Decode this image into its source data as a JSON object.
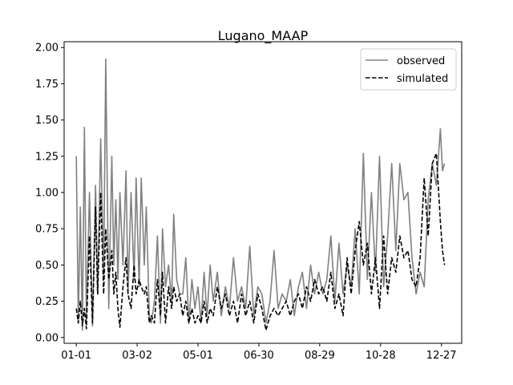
{
  "chart_data": {
    "type": "line",
    "title": "Lugano_MAAP",
    "xlabel": "",
    "ylabel": "",
    "x_ticks": [
      "01-01",
      "03-02",
      "05-01",
      "06-30",
      "08-29",
      "10-28",
      "12-27"
    ],
    "x_tick_days": [
      1,
      61,
      121,
      181,
      241,
      301,
      361
    ],
    "xlim": [
      -11,
      381
    ],
    "ylim": [
      -0.04,
      2.04
    ],
    "y_ticks": [
      "0.00",
      "0.25",
      "0.50",
      "0.75",
      "1.00",
      "1.25",
      "1.50",
      "1.75",
      "2.00"
    ],
    "y_tick_values": [
      0,
      0.25,
      0.5,
      0.75,
      1.0,
      1.25,
      1.5,
      1.75,
      2.0
    ],
    "grid": false,
    "legend": {
      "position": "top-right",
      "labels": [
        "observed",
        "simulated"
      ]
    },
    "series": [
      {
        "name": "observed",
        "color": "#808080",
        "style": "solid",
        "x": [
          1,
          3,
          5,
          7,
          9,
          11,
          14,
          17,
          20,
          22,
          25,
          28,
          30,
          33,
          36,
          38,
          40,
          42,
          44,
          47,
          50,
          52,
          55,
          58,
          60,
          63,
          65,
          68,
          70,
          73,
          75,
          78,
          81,
          84,
          86,
          89,
          92,
          95,
          97,
          100,
          103,
          106,
          109,
          112,
          115,
          118,
          121,
          124,
          127,
          130,
          133,
          136,
          140,
          144,
          148,
          152,
          156,
          160,
          164,
          168,
          172,
          176,
          180,
          184,
          188,
          192,
          196,
          200,
          204,
          208,
          212,
          216,
          220,
          224,
          228,
          232,
          236,
          240,
          244,
          248,
          252,
          256,
          260,
          264,
          268,
          272,
          276,
          280,
          284,
          288,
          292,
          296,
          300,
          304,
          308,
          312,
          316,
          320,
          324,
          328,
          332,
          336,
          340,
          344,
          348,
          352,
          356,
          360,
          362,
          364
        ],
        "y": [
          1.25,
          0.1,
          0.9,
          0.05,
          1.45,
          0.12,
          1.0,
          0.08,
          1.05,
          0.3,
          1.37,
          0.4,
          1.92,
          0.2,
          1.25,
          0.5,
          0.95,
          0.4,
          1.0,
          0.5,
          1.15,
          0.3,
          1.0,
          0.4,
          1.1,
          0.35,
          1.1,
          0.5,
          0.9,
          0.15,
          0.1,
          0.25,
          0.7,
          0.1,
          0.75,
          0.35,
          0.5,
          0.25,
          0.85,
          0.4,
          0.3,
          0.3,
          0.55,
          0.1,
          0.4,
          0.2,
          0.35,
          0.1,
          0.45,
          0.15,
          0.5,
          0.25,
          0.45,
          0.15,
          0.35,
          0.2,
          0.55,
          0.25,
          0.35,
          0.2,
          0.63,
          0.15,
          0.35,
          0.3,
          0.1,
          0.25,
          0.6,
          0.2,
          0.3,
          0.25,
          0.4,
          0.15,
          0.35,
          0.45,
          0.2,
          0.5,
          0.3,
          0.45,
          0.3,
          0.4,
          0.7,
          0.25,
          0.65,
          0.3,
          0.5,
          0.35,
          0.75,
          0.3,
          1.27,
          0.4,
          1.0,
          0.45,
          1.25,
          0.35,
          0.7,
          1.2,
          0.6,
          1.2,
          0.95,
          1.0,
          0.55,
          0.3,
          0.45,
          0.35,
          0.95,
          1.2,
          1.05,
          1.44,
          1.15,
          1.2
        ]
      },
      {
        "name": "simulated",
        "color": "#000000",
        "style": "dashed",
        "x": [
          1,
          3,
          5,
          7,
          9,
          11,
          14,
          17,
          20,
          22,
          25,
          28,
          30,
          33,
          36,
          38,
          40,
          42,
          44,
          47,
          50,
          52,
          55,
          58,
          60,
          63,
          65,
          68,
          70,
          73,
          75,
          78,
          81,
          84,
          86,
          89,
          92,
          95,
          97,
          100,
          103,
          106,
          109,
          112,
          115,
          118,
          121,
          124,
          127,
          130,
          133,
          136,
          140,
          144,
          148,
          152,
          156,
          160,
          164,
          168,
          172,
          176,
          180,
          184,
          188,
          192,
          196,
          200,
          204,
          208,
          212,
          216,
          220,
          224,
          228,
          232,
          236,
          240,
          244,
          248,
          252,
          256,
          260,
          264,
          268,
          272,
          276,
          280,
          284,
          288,
          292,
          296,
          300,
          304,
          308,
          312,
          316,
          320,
          324,
          328,
          332,
          336,
          340,
          344,
          348,
          352,
          356,
          360,
          362,
          364
        ],
        "y": [
          0.2,
          0.1,
          0.25,
          0.08,
          0.2,
          0.06,
          0.7,
          0.1,
          0.9,
          0.3,
          1.0,
          0.3,
          0.75,
          0.4,
          0.6,
          0.3,
          0.45,
          0.2,
          0.07,
          0.35,
          0.55,
          0.3,
          0.2,
          0.5,
          0.3,
          0.4,
          0.35,
          0.3,
          0.35,
          0.1,
          0.15,
          0.1,
          0.4,
          0.15,
          0.45,
          0.1,
          0.35,
          0.2,
          0.35,
          0.25,
          0.3,
          0.15,
          0.25,
          0.1,
          0.2,
          0.1,
          0.15,
          0.1,
          0.25,
          0.1,
          0.2,
          0.15,
          0.35,
          0.2,
          0.3,
          0.15,
          0.25,
          0.1,
          0.3,
          0.15,
          0.25,
          0.1,
          0.3,
          0.2,
          0.05,
          0.15,
          0.2,
          0.15,
          0.2,
          0.25,
          0.15,
          0.25,
          0.3,
          0.2,
          0.35,
          0.25,
          0.4,
          0.3,
          0.35,
          0.25,
          0.45,
          0.2,
          0.3,
          0.15,
          0.55,
          0.3,
          0.6,
          0.8,
          0.5,
          0.65,
          0.3,
          0.55,
          0.2,
          0.7,
          0.3,
          0.55,
          0.45,
          0.7,
          0.55,
          0.6,
          0.4,
          0.35,
          0.55,
          1.1,
          0.7,
          1.2,
          1.27,
          0.8,
          0.6,
          0.5
        ]
      }
    ]
  }
}
